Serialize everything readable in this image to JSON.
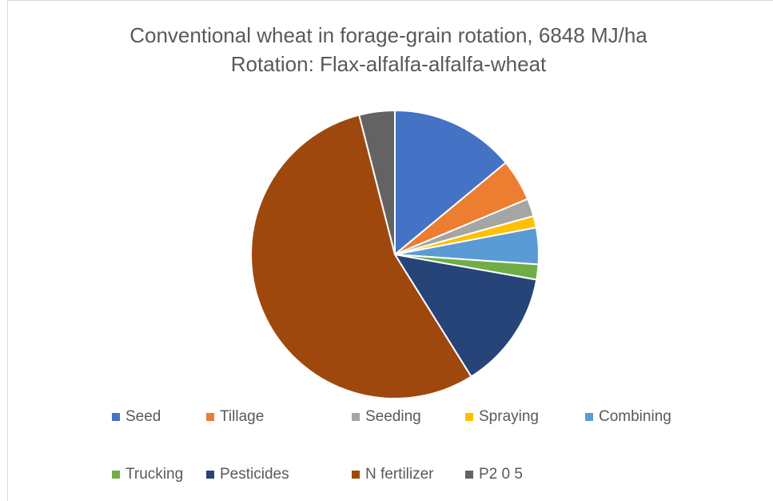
{
  "chart_data": {
    "type": "pie",
    "title": "Conventional wheat in forage-grain rotation, 6848 MJ/ha",
    "subtitle": "Rotation: Flax-alfalfa-alfalfa-wheat",
    "categories": [
      "Seed",
      "Tillage",
      "Seeding",
      "Spraying",
      "Combining",
      "Trucking",
      "Pesticides",
      "N fertilizer",
      "P2 0 5"
    ],
    "values": [
      14,
      4.7,
      2,
      1.3,
      4.1,
      1.7,
      13.3,
      54.9,
      4
    ],
    "colors": [
      "#4472c4",
      "#ed7d31",
      "#a5a5a5",
      "#ffc000",
      "#5b9bd5",
      "#70ad47",
      "#264478",
      "#9e480e",
      "#636363"
    ],
    "legend": "bottom"
  }
}
